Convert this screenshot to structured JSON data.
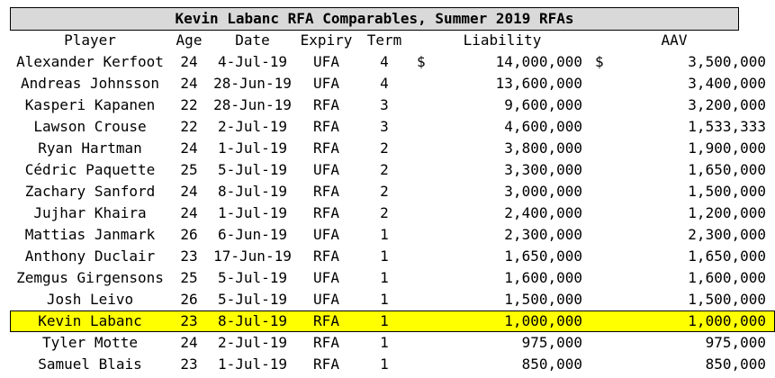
{
  "title": "Kevin Labanc RFA Comparables, Summer 2019 RFAs",
  "headers": {
    "player": "Player",
    "age": "Age",
    "date": "Date",
    "expiry": "Expiry",
    "term": "Term",
    "liability": "Liability",
    "aav": "AAV"
  },
  "currency_symbol": "$",
  "highlight_color": "#ffff00",
  "rows": [
    {
      "player": "Alexander Kerfoot",
      "age": "24",
      "date": "4-Jul-19",
      "expiry": "UFA",
      "term": "4",
      "liability": "14,000,000",
      "aav": "3,500,000",
      "show_symbol": true
    },
    {
      "player": "Andreas Johnsson",
      "age": "24",
      "date": "28-Jun-19",
      "expiry": "UFA",
      "term": "4",
      "liability": "13,600,000",
      "aav": "3,400,000"
    },
    {
      "player": "Kasperi Kapanen",
      "age": "22",
      "date": "28-Jun-19",
      "expiry": "RFA",
      "term": "3",
      "liability": "9,600,000",
      "aav": "3,200,000"
    },
    {
      "player": "Lawson Crouse",
      "age": "22",
      "date": "2-Jul-19",
      "expiry": "RFA",
      "term": "3",
      "liability": "4,600,000",
      "aav": "1,533,333"
    },
    {
      "player": "Ryan Hartman",
      "age": "24",
      "date": "1-Jul-19",
      "expiry": "RFA",
      "term": "2",
      "liability": "3,800,000",
      "aav": "1,900,000"
    },
    {
      "player": "Cédric Paquette",
      "age": "25",
      "date": "5-Jul-19",
      "expiry": "UFA",
      "term": "2",
      "liability": "3,300,000",
      "aav": "1,650,000"
    },
    {
      "player": "Zachary Sanford",
      "age": "24",
      "date": "8-Jul-19",
      "expiry": "RFA",
      "term": "2",
      "liability": "3,000,000",
      "aav": "1,500,000"
    },
    {
      "player": "Jujhar Khaira",
      "age": "24",
      "date": "1-Jul-19",
      "expiry": "RFA",
      "term": "2",
      "liability": "2,400,000",
      "aav": "1,200,000"
    },
    {
      "player": "Mattias Janmark",
      "age": "26",
      "date": "6-Jun-19",
      "expiry": "UFA",
      "term": "1",
      "liability": "2,300,000",
      "aav": "2,300,000"
    },
    {
      "player": "Anthony Duclair",
      "age": "23",
      "date": "17-Jun-19",
      "expiry": "RFA",
      "term": "1",
      "liability": "1,650,000",
      "aav": "1,650,000"
    },
    {
      "player": "Zemgus Girgensons",
      "age": "25",
      "date": "5-Jul-19",
      "expiry": "UFA",
      "term": "1",
      "liability": "1,600,000",
      "aav": "1,600,000"
    },
    {
      "player": "Josh Leivo",
      "age": "26",
      "date": "5-Jul-19",
      "expiry": "UFA",
      "term": "1",
      "liability": "1,500,000",
      "aav": "1,500,000"
    },
    {
      "player": "Kevin Labanc",
      "age": "23",
      "date": "8-Jul-19",
      "expiry": "RFA",
      "term": "1",
      "liability": "1,000,000",
      "aav": "1,000,000",
      "highlight": true
    },
    {
      "player": "Tyler Motte",
      "age": "24",
      "date": "2-Jul-19",
      "expiry": "RFA",
      "term": "1",
      "liability": "975,000",
      "aav": "975,000"
    },
    {
      "player": "Samuel Blais",
      "age": "23",
      "date": "1-Jul-19",
      "expiry": "RFA",
      "term": "1",
      "liability": "850,000",
      "aav": "850,000"
    }
  ]
}
